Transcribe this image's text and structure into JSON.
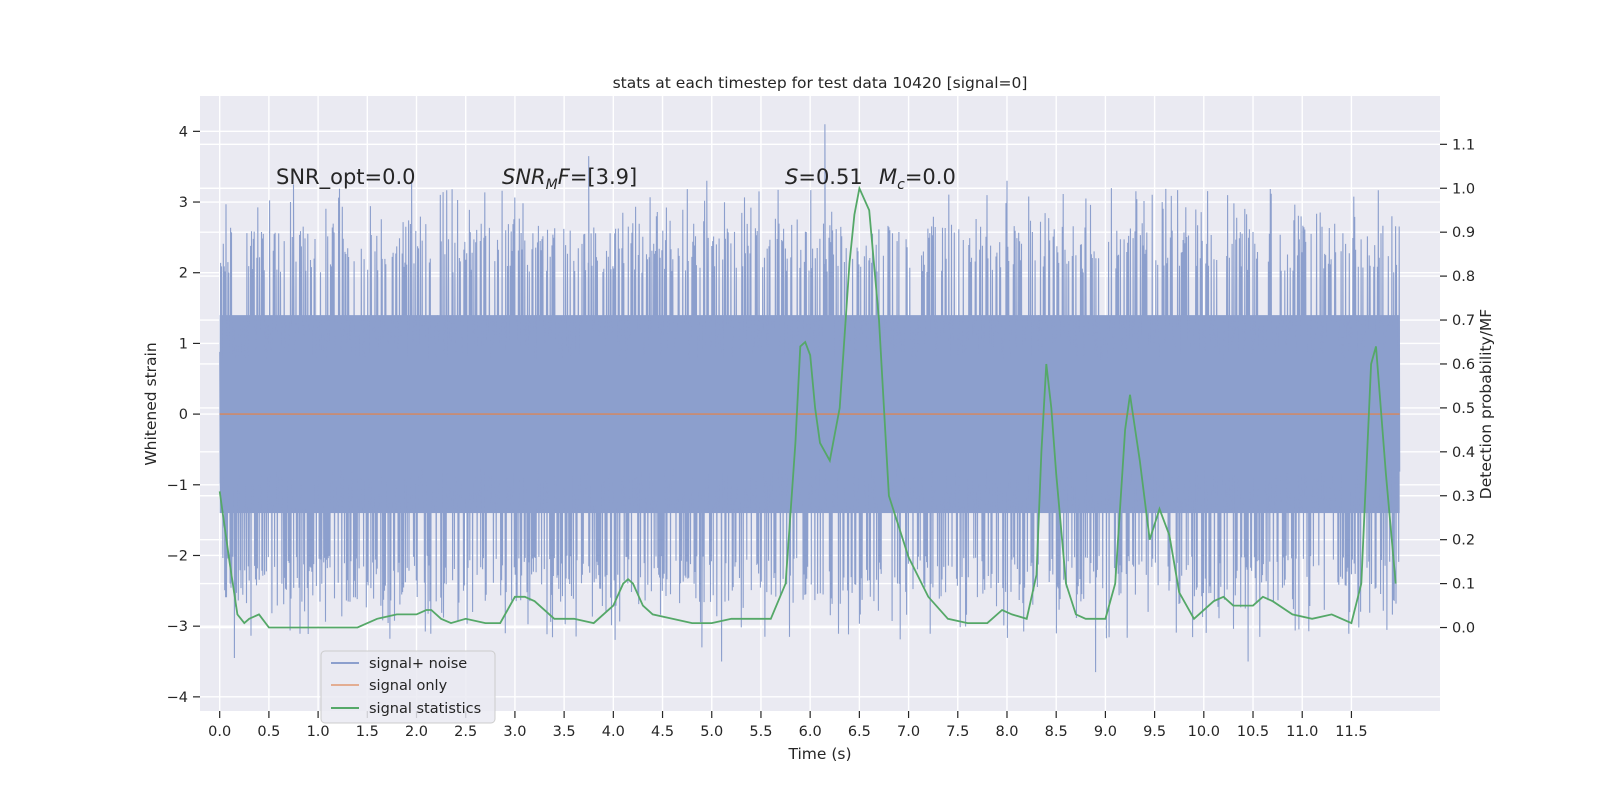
{
  "chart_data": {
    "type": "line",
    "title": "stats at each timestep for test data 10420 [signal=0]",
    "xlabel": "Time (s)",
    "ylabel_left": "Whitened strain",
    "ylabel_right": "Detection probability/MF",
    "xlim": [
      -0.2,
      12.4
    ],
    "ylim_left": [
      -4.2,
      4.5
    ],
    "ylim_right": [
      -0.19,
      1.21
    ],
    "x_ticks": [
      0.0,
      0.5,
      1.0,
      1.5,
      2.0,
      2.5,
      3.0,
      3.5,
      4.0,
      4.5,
      5.0,
      5.5,
      6.0,
      6.5,
      7.0,
      7.5,
      8.0,
      8.5,
      9.0,
      9.5,
      10.0,
      10.5,
      11.0,
      11.5
    ],
    "x_tick_labels": [
      "0.0",
      "0.5",
      "1.0",
      "1.5",
      "2.0",
      "2.5",
      "3.0",
      "3.5",
      "4.0",
      "4.5",
      "5.0",
      "5.5",
      "6.0",
      "6.5",
      "7.0",
      "7.5",
      "8.0",
      "8.5",
      "9.0",
      "9.5",
      "10.0",
      "10.5",
      "11.0",
      "11.5"
    ],
    "y_left_ticks": [
      -4,
      -3,
      -2,
      -1,
      0,
      1,
      2,
      3,
      4
    ],
    "y_left_tick_labels": [
      "−4",
      "−3",
      "−2",
      "−1",
      "0",
      "1",
      "2",
      "3",
      "4"
    ],
    "y_right_ticks": [
      0.0,
      0.1,
      0.2,
      0.3,
      0.4,
      0.5,
      0.6,
      0.7,
      0.8,
      0.9,
      1.0,
      1.1
    ],
    "y_right_tick_labels": [
      "0.0",
      "0.1",
      "0.2",
      "0.3",
      "0.4",
      "0.5",
      "0.6",
      "0.7",
      "0.8",
      "0.9",
      "1.0",
      "1.1"
    ],
    "grid": true,
    "legend_position": "lower-left",
    "annotations": {
      "snr_opt": "SNR_opt=0.0",
      "snr_mf_var": "SNR",
      "snr_mf_sub": "M",
      "snr_mf_var2": "F",
      "snr_mf_value": "=[3.9]",
      "s_var": "S",
      "s_value": "=0.51",
      "mc_var": "M",
      "mc_sub": "c",
      "mc_value": "=0.0"
    },
    "series": [
      {
        "name": "signal+ noise",
        "axis": "left",
        "color": "#8c9fcd",
        "x_range": [
          0.0,
          11.99
        ],
        "core_amplitude": 1.4,
        "upper_peak_range": [
          2.0,
          4.1
        ],
        "lower_peak_range": [
          -3.7,
          -1.9
        ],
        "peaks": [
          {
            "x": 6.15,
            "y": 4.1
          },
          {
            "x": 3.75,
            "y": 3.65
          },
          {
            "x": 0.75,
            "y": 3.25
          },
          {
            "x": 1.95,
            "y": 3.3
          },
          {
            "x": 4.95,
            "y": 3.3
          },
          {
            "x": 8.0,
            "y": 3.3
          },
          {
            "x": 8.9,
            "y": -3.65
          },
          {
            "x": 0.15,
            "y": -3.45
          },
          {
            "x": 10.45,
            "y": -3.5
          },
          {
            "x": 5.1,
            "y": -3.5
          },
          {
            "x": 4.9,
            "y": -3.3
          }
        ]
      },
      {
        "name": "signal only",
        "axis": "left",
        "color": "#dd8452",
        "x": [
          0.0,
          11.99
        ],
        "y": [
          0.0,
          0.0
        ]
      },
      {
        "name": "signal statistics",
        "axis": "right",
        "color": "#55a868",
        "x": [
          0.0,
          0.1,
          0.18,
          0.25,
          0.3,
          0.4,
          0.5,
          0.6,
          0.8,
          1.0,
          1.2,
          1.4,
          1.6,
          1.8,
          2.0,
          2.1,
          2.15,
          2.25,
          2.35,
          2.5,
          2.7,
          2.85,
          3.0,
          3.1,
          3.2,
          3.4,
          3.6,
          3.8,
          4.0,
          4.1,
          4.15,
          4.2,
          4.3,
          4.4,
          4.6,
          4.8,
          5.0,
          5.2,
          5.4,
          5.6,
          5.75,
          5.85,
          5.9,
          5.95,
          6.0,
          6.05,
          6.1,
          6.2,
          6.3,
          6.4,
          6.45,
          6.5,
          6.6,
          6.7,
          6.8,
          7.0,
          7.2,
          7.4,
          7.6,
          7.8,
          7.95,
          8.05,
          8.2,
          8.3,
          8.35,
          8.4,
          8.45,
          8.5,
          8.6,
          8.7,
          8.8,
          9.0,
          9.1,
          9.2,
          9.25,
          9.35,
          9.45,
          9.55,
          9.65,
          9.75,
          9.9,
          10.1,
          10.2,
          10.3,
          10.5,
          10.6,
          10.7,
          10.9,
          11.1,
          11.3,
          11.5,
          11.6,
          11.7,
          11.75,
          11.85,
          11.95
        ],
        "y": [
          0.31,
          0.15,
          0.03,
          0.01,
          0.02,
          0.03,
          0.0,
          0.0,
          0.0,
          0.0,
          0.0,
          0.0,
          0.02,
          0.03,
          0.03,
          0.04,
          0.04,
          0.02,
          0.01,
          0.02,
          0.01,
          0.01,
          0.07,
          0.07,
          0.06,
          0.02,
          0.02,
          0.01,
          0.05,
          0.1,
          0.11,
          0.1,
          0.05,
          0.03,
          0.02,
          0.01,
          0.01,
          0.02,
          0.02,
          0.02,
          0.1,
          0.42,
          0.64,
          0.65,
          0.62,
          0.5,
          0.42,
          0.38,
          0.5,
          0.83,
          0.94,
          1.0,
          0.95,
          0.7,
          0.3,
          0.16,
          0.07,
          0.02,
          0.01,
          0.01,
          0.04,
          0.03,
          0.02,
          0.12,
          0.4,
          0.6,
          0.5,
          0.35,
          0.1,
          0.03,
          0.02,
          0.02,
          0.1,
          0.45,
          0.53,
          0.38,
          0.2,
          0.27,
          0.21,
          0.08,
          0.02,
          0.06,
          0.07,
          0.05,
          0.05,
          0.07,
          0.06,
          0.03,
          0.02,
          0.03,
          0.01,
          0.1,
          0.6,
          0.64,
          0.35,
          0.1
        ]
      }
    ]
  }
}
